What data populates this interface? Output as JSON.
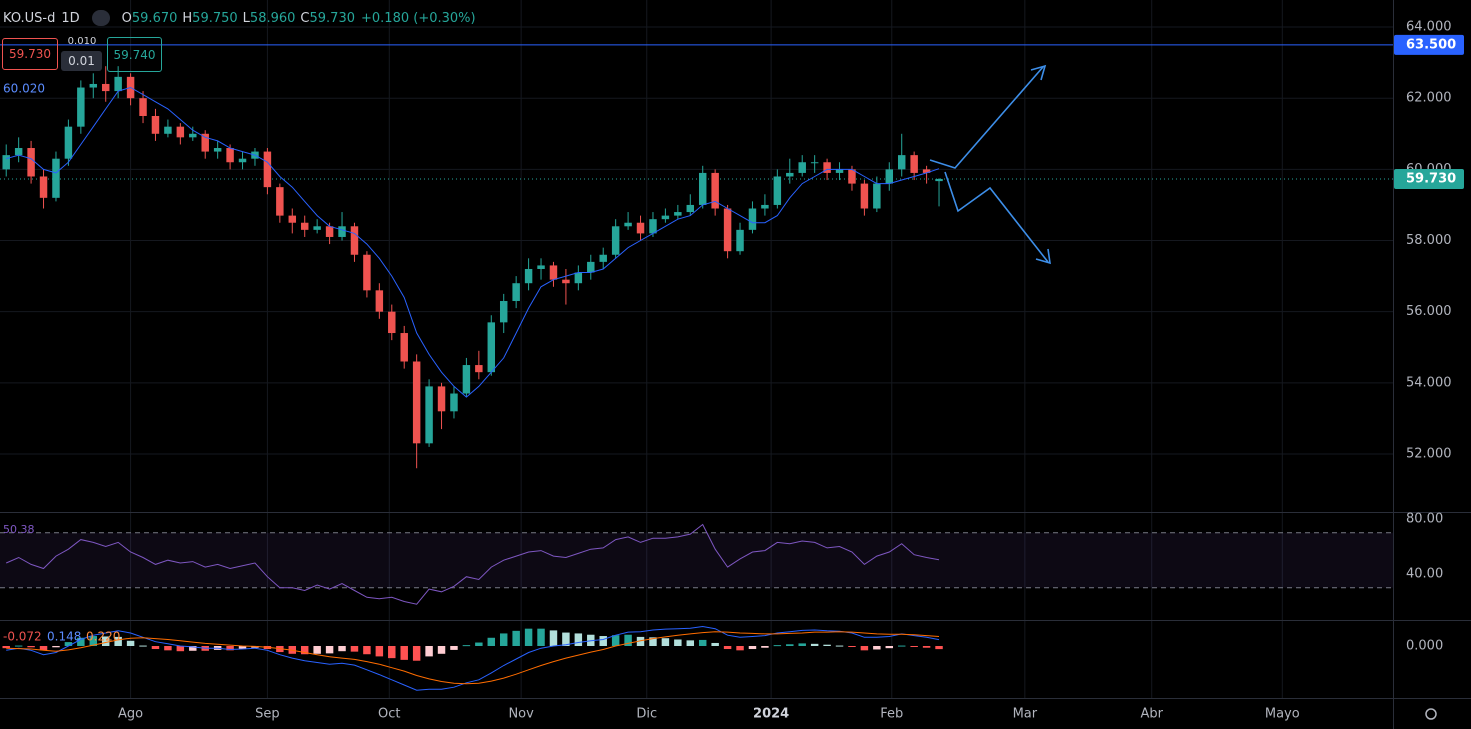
{
  "chart_data": {
    "type": "candlestick",
    "header": {
      "symbol": "KO.US-d",
      "interval": "1D",
      "ohlc": [
        {
          "label": "O",
          "value": "59.670"
        },
        {
          "label": "H",
          "value": "59.750"
        },
        {
          "label": "L",
          "value": "58.960"
        },
        {
          "label": "C",
          "value": "59.730"
        }
      ],
      "change": "+0.180 (+0.30%)"
    },
    "quote": {
      "bid": "59.730",
      "spread_top": "0.010",
      "spread": "0.01",
      "ask": "59.740"
    },
    "up_color": "#26a69a",
    "down_color": "#ef5350",
    "xlim": [
      0,
      112
    ],
    "xticks": [
      {
        "value": 10.5,
        "label": "Ago"
      },
      {
        "value": 21.5,
        "label": "Sep"
      },
      {
        "value": 31.3,
        "label": "Oct"
      },
      {
        "value": 41.9,
        "label": "Nov"
      },
      {
        "value": 52,
        "label": "Dic"
      },
      {
        "value": 62,
        "label": "2024"
      },
      {
        "value": 71.7,
        "label": "Feb"
      },
      {
        "value": 82.4,
        "label": "Mar"
      },
      {
        "value": 92.6,
        "label": "Abr"
      },
      {
        "value": 103.1,
        "label": "Mayo"
      }
    ],
    "ylim": [
      50.37,
      64.76
    ],
    "yticks": [
      {
        "value": 52,
        "label": "52.000"
      },
      {
        "value": 54,
        "label": "54.000"
      },
      {
        "value": 56,
        "label": "56.000"
      },
      {
        "value": 58,
        "label": "58.000"
      },
      {
        "value": 60,
        "label": "60.000"
      },
      {
        "value": 62,
        "label": "62.000"
      },
      {
        "value": 64,
        "label": "64.000"
      }
    ],
    "hline": {
      "value": 63.5,
      "label": "63.500",
      "color": "#2962ff"
    },
    "last_price": {
      "value": 59.73,
      "label": "59.730"
    },
    "candles": [
      [
        60.0,
        60.7,
        59.8,
        60.4
      ],
      [
        60.4,
        60.9,
        60.2,
        60.6
      ],
      [
        60.6,
        60.8,
        59.6,
        59.8
      ],
      [
        59.8,
        60.0,
        58.9,
        59.2
      ],
      [
        59.2,
        60.5,
        59.1,
        60.3
      ],
      [
        60.3,
        61.4,
        60.1,
        61.2
      ],
      [
        61.2,
        62.5,
        61.0,
        62.3
      ],
      [
        62.3,
        62.7,
        62.0,
        62.4
      ],
      [
        62.4,
        62.9,
        61.9,
        62.2
      ],
      [
        62.2,
        62.9,
        62.0,
        62.6
      ],
      [
        62.6,
        62.7,
        61.8,
        62.0
      ],
      [
        62.0,
        62.2,
        61.3,
        61.5
      ],
      [
        61.5,
        61.7,
        60.8,
        61.0
      ],
      [
        61.0,
        61.4,
        60.9,
        61.2
      ],
      [
        61.2,
        61.3,
        60.7,
        60.9
      ],
      [
        60.9,
        61.2,
        60.8,
        61.0
      ],
      [
        61.0,
        61.1,
        60.3,
        60.5
      ],
      [
        60.5,
        60.8,
        60.3,
        60.6
      ],
      [
        60.6,
        60.7,
        60.0,
        60.2
      ],
      [
        60.2,
        60.5,
        60.0,
        60.3
      ],
      [
        60.3,
        60.6,
        60.1,
        60.5
      ],
      [
        60.5,
        60.6,
        59.3,
        59.5
      ],
      [
        59.5,
        59.6,
        58.5,
        58.7
      ],
      [
        58.7,
        58.9,
        58.2,
        58.5
      ],
      [
        58.5,
        58.7,
        58.1,
        58.3
      ],
      [
        58.3,
        58.6,
        58.2,
        58.4
      ],
      [
        58.4,
        58.5,
        57.9,
        58.1
      ],
      [
        58.1,
        58.8,
        58.0,
        58.4
      ],
      [
        58.4,
        58.5,
        57.4,
        57.6
      ],
      [
        57.6,
        57.7,
        56.4,
        56.6
      ],
      [
        56.6,
        56.8,
        55.8,
        56.0
      ],
      [
        56.0,
        56.2,
        55.2,
        55.4
      ],
      [
        55.4,
        55.6,
        54.4,
        54.6
      ],
      [
        54.6,
        54.8,
        51.6,
        52.3
      ],
      [
        52.3,
        54.1,
        52.2,
        53.9
      ],
      [
        53.9,
        54.0,
        52.7,
        53.2
      ],
      [
        53.2,
        53.9,
        53.0,
        53.7
      ],
      [
        53.7,
        54.7,
        53.6,
        54.5
      ],
      [
        54.5,
        54.9,
        54.1,
        54.3
      ],
      [
        54.3,
        55.9,
        54.2,
        55.7
      ],
      [
        55.7,
        56.5,
        55.4,
        56.3
      ],
      [
        56.3,
        57.0,
        56.1,
        56.8
      ],
      [
        56.8,
        57.5,
        56.6,
        57.2
      ],
      [
        57.2,
        57.5,
        56.9,
        57.3
      ],
      [
        57.3,
        57.4,
        56.7,
        56.9
      ],
      [
        56.9,
        57.2,
        56.2,
        56.8
      ],
      [
        56.8,
        57.3,
        56.6,
        57.1
      ],
      [
        57.1,
        57.6,
        56.9,
        57.4
      ],
      [
        57.4,
        57.8,
        57.2,
        57.6
      ],
      [
        57.6,
        58.6,
        57.5,
        58.4
      ],
      [
        58.4,
        58.8,
        58.3,
        58.5
      ],
      [
        58.5,
        58.7,
        58.0,
        58.2
      ],
      [
        58.2,
        58.8,
        58.1,
        58.6
      ],
      [
        58.6,
        58.9,
        58.5,
        58.7
      ],
      [
        58.7,
        59.0,
        58.6,
        58.8
      ],
      [
        58.8,
        59.3,
        58.7,
        59.0
      ],
      [
        59.0,
        60.1,
        58.9,
        59.9
      ],
      [
        59.9,
        60.0,
        58.7,
        58.9
      ],
      [
        58.9,
        59.0,
        57.5,
        57.7
      ],
      [
        57.7,
        58.5,
        57.6,
        58.3
      ],
      [
        58.3,
        59.1,
        58.2,
        58.9
      ],
      [
        58.9,
        59.3,
        58.7,
        59.0
      ],
      [
        59.0,
        60.0,
        58.9,
        59.8
      ],
      [
        59.8,
        60.3,
        59.6,
        59.9
      ],
      [
        59.9,
        60.4,
        59.8,
        60.2
      ],
      [
        60.2,
        60.4,
        59.9,
        60.2
      ],
      [
        60.2,
        60.3,
        59.7,
        59.9
      ],
      [
        59.9,
        60.2,
        59.7,
        60.0
      ],
      [
        60.0,
        60.1,
        59.4,
        59.6
      ],
      [
        59.6,
        59.7,
        58.7,
        58.9
      ],
      [
        58.9,
        59.8,
        58.8,
        59.6
      ],
      [
        59.6,
        60.2,
        59.4,
        60.0
      ],
      [
        60.0,
        61.0,
        59.8,
        60.4
      ],
      [
        60.4,
        60.5,
        59.7,
        59.9
      ],
      [
        60.0,
        60.1,
        59.6,
        59.9
      ],
      [
        59.67,
        59.75,
        58.96,
        59.73
      ]
    ],
    "ma": {
      "label": "60.020",
      "color": "#2962ff",
      "values": [
        60.3,
        60.4,
        60.3,
        60.0,
        59.9,
        60.2,
        60.7,
        61.2,
        61.7,
        62.2,
        62.3,
        62.1,
        61.9,
        61.7,
        61.4,
        61.1,
        60.9,
        60.8,
        60.6,
        60.5,
        60.4,
        60.2,
        59.8,
        59.5,
        59.1,
        58.7,
        58.4,
        58.3,
        58.2,
        57.9,
        57.5,
        57.0,
        56.4,
        55.4,
        54.8,
        54.3,
        53.9,
        53.6,
        53.9,
        54.3,
        54.7,
        55.4,
        56.1,
        56.7,
        56.9,
        57.0,
        57.1,
        57.1,
        57.2,
        57.5,
        57.8,
        58.0,
        58.2,
        58.4,
        58.6,
        58.7,
        59.0,
        59.1,
        58.9,
        58.7,
        58.5,
        58.5,
        58.7,
        59.2,
        59.6,
        59.8,
        60.0,
        60.0,
        60.0,
        59.8,
        59.6,
        59.6,
        59.7,
        59.8,
        59.9,
        60.02
      ]
    },
    "rsi": {
      "label": "50.38",
      "color": "#7e57c2",
      "ylim": [
        6.5,
        85.1
      ],
      "yticks": [
        {
          "value": 40,
          "label": "40.00"
        },
        {
          "value": 80,
          "label": "80.00"
        }
      ],
      "bands": [
        70,
        30
      ],
      "values": [
        48,
        52,
        47,
        44,
        53,
        58,
        65,
        63,
        60,
        63,
        56,
        52,
        47,
        50,
        48,
        49,
        45,
        47,
        44,
        46,
        48,
        38,
        30,
        30,
        28,
        32,
        29,
        33,
        28,
        23,
        22,
        23,
        20,
        18,
        29,
        27,
        31,
        38,
        36,
        45,
        50,
        53,
        56,
        57,
        53,
        52,
        55,
        58,
        59,
        65,
        67,
        63,
        66,
        66,
        67,
        69,
        76,
        58,
        45,
        51,
        56,
        57,
        63,
        62,
        64,
        63,
        59,
        60,
        56,
        47,
        53,
        56,
        62,
        54,
        52,
        50.38
      ]
    },
    "macd": {
      "ylim": [
        -1.2,
        0.6
      ],
      "yticks": [
        {
          "value": 0,
          "label": "0.000"
        }
      ],
      "hist_label": "-0.072",
      "macd_label": "0.148",
      "signal_label": "0.220",
      "macd_color": "#2962ff",
      "signal_color": "#ff6d00",
      "macd": [
        -0.1,
        -0.05,
        -0.1,
        -0.2,
        -0.15,
        0,
        0.15,
        0.25,
        0.3,
        0.35,
        0.3,
        0.2,
        0.1,
        0.05,
        0.0,
        -0.02,
        -0.05,
        -0.05,
        -0.08,
        -0.07,
        -0.05,
        -0.1,
        -0.2,
        -0.28,
        -0.34,
        -0.38,
        -0.42,
        -0.4,
        -0.44,
        -0.55,
        -0.66,
        -0.78,
        -0.9,
        -1.02,
        -1.0,
        -1.0,
        -0.95,
        -0.85,
        -0.78,
        -0.62,
        -0.45,
        -0.3,
        -0.15,
        -0.05,
        0.0,
        0.03,
        0.08,
        0.12,
        0.15,
        0.25,
        0.32,
        0.33,
        0.37,
        0.39,
        0.4,
        0.41,
        0.45,
        0.4,
        0.25,
        0.2,
        0.22,
        0.24,
        0.3,
        0.33,
        0.36,
        0.37,
        0.35,
        0.34,
        0.3,
        0.2,
        0.2,
        0.22,
        0.28,
        0.24,
        0.2,
        0.148
      ],
      "signal": [
        -0.05,
        -0.06,
        -0.07,
        -0.1,
        -0.12,
        -0.09,
        -0.04,
        0.02,
        0.08,
        0.14,
        0.18,
        0.19,
        0.17,
        0.15,
        0.12,
        0.09,
        0.06,
        0.04,
        0.02,
        0.0,
        -0.01,
        -0.03,
        -0.06,
        -0.1,
        -0.15,
        -0.2,
        -0.25,
        -0.28,
        -0.31,
        -0.36,
        -0.42,
        -0.5,
        -0.58,
        -0.68,
        -0.76,
        -0.82,
        -0.86,
        -0.87,
        -0.86,
        -0.81,
        -0.74,
        -0.65,
        -0.55,
        -0.45,
        -0.36,
        -0.28,
        -0.21,
        -0.14,
        -0.08,
        0.0,
        0.06,
        0.12,
        0.17,
        0.21,
        0.25,
        0.28,
        0.31,
        0.33,
        0.32,
        0.3,
        0.29,
        0.28,
        0.28,
        0.29,
        0.3,
        0.32,
        0.32,
        0.33,
        0.32,
        0.3,
        0.28,
        0.27,
        0.27,
        0.26,
        0.24,
        0.22
      ],
      "hist": [
        -0.05,
        0.01,
        -0.03,
        -0.1,
        -0.03,
        0.09,
        0.19,
        0.23,
        0.22,
        0.21,
        0.12,
        0.01,
        -0.07,
        -0.1,
        -0.12,
        -0.11,
        -0.11,
        -0.09,
        -0.1,
        -0.07,
        -0.04,
        -0.07,
        -0.14,
        -0.18,
        -0.19,
        -0.18,
        -0.17,
        -0.12,
        -0.13,
        -0.19,
        -0.24,
        -0.28,
        -0.32,
        -0.34,
        -0.24,
        -0.18,
        -0.09,
        0.02,
        0.08,
        0.19,
        0.29,
        0.35,
        0.4,
        0.4,
        0.36,
        0.31,
        0.29,
        0.26,
        0.23,
        0.25,
        0.26,
        0.21,
        0.2,
        0.18,
        0.15,
        0.13,
        0.14,
        0.07,
        -0.07,
        -0.1,
        -0.07,
        -0.04,
        0.02,
        0.04,
        0.06,
        0.05,
        0.03,
        0.01,
        -0.02,
        -0.1,
        -0.08,
        -0.05,
        0.01,
        -0.02,
        -0.04,
        -0.072
      ]
    }
  }
}
